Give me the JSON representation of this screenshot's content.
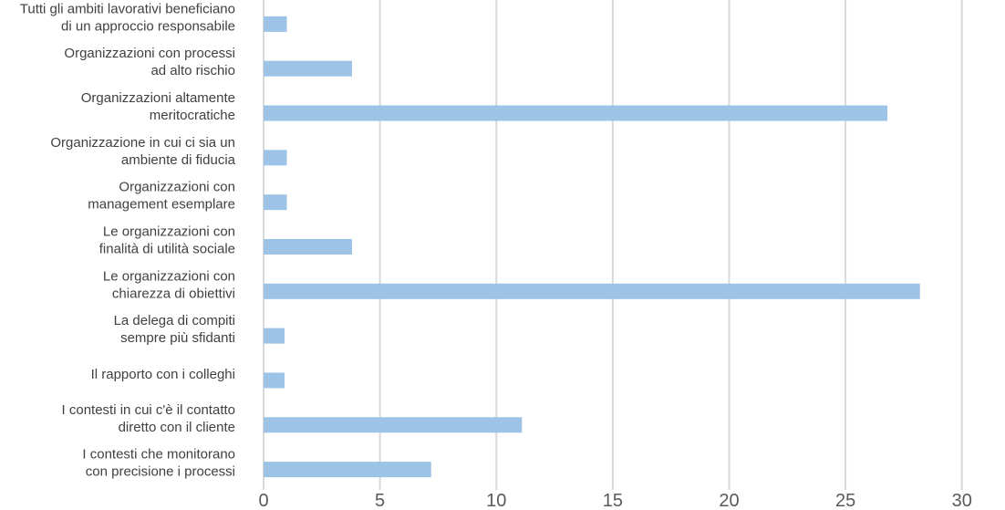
{
  "chart_data": {
    "type": "bar",
    "orientation": "horizontal",
    "categories": [
      [
        "Tutti gli ambiti lavorativi beneficiano",
        "di un approccio responsabile"
      ],
      [
        "Organizzazioni con processi",
        "ad alto rischio"
      ],
      [
        "Organizzazioni altamente",
        "meritocratiche"
      ],
      [
        "Organizzazione in cui ci sia un",
        "ambiente di fiducia"
      ],
      [
        "Organizzazioni con",
        "management esemplare"
      ],
      [
        "Le organizzazioni con",
        "finalità di utilità sociale"
      ],
      [
        "Le organizzazioni con",
        "chiarezza di obiettivi"
      ],
      [
        "La delega di compiti",
        "sempre più sfidanti"
      ],
      [
        "Il rapporto con i colleghi"
      ],
      [
        "I contesti in cui c'è il contatto",
        "diretto con il cliente"
      ],
      [
        "I contesti  che monitorano",
        "con precisione i processi"
      ]
    ],
    "values": [
      1,
      3.8,
      26.8,
      1,
      1,
      3.8,
      28.2,
      0.9,
      0.9,
      11.1,
      7.2
    ],
    "xlim": [
      0,
      31.5
    ],
    "xticks": [
      "0",
      "5",
      "10",
      "15",
      "20",
      "25",
      "30"
    ],
    "xtick_values": [
      0,
      5,
      10,
      15,
      20,
      25,
      30
    ],
    "grid": true,
    "bar_color": "#9dc3e6",
    "grid_color": "#d9d9d9"
  }
}
